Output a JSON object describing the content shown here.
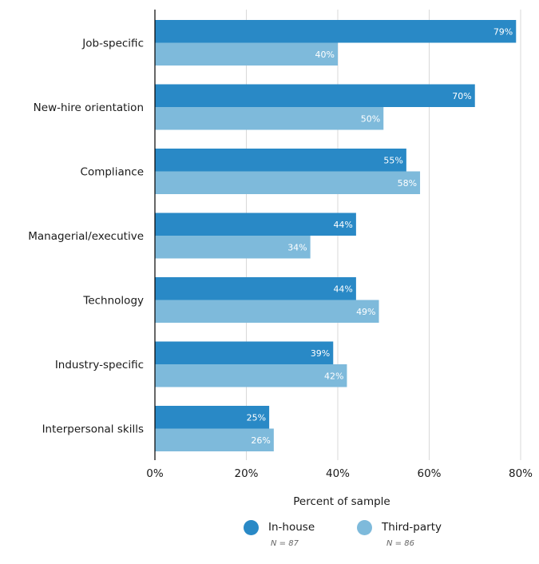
{
  "chart_data": {
    "type": "bar",
    "orientation": "horizontal",
    "title": "",
    "xlabel": "Percent of sample",
    "ylabel": "",
    "xlim": [
      0,
      80
    ],
    "x_ticks": [
      0,
      20,
      40,
      60,
      80
    ],
    "x_tick_labels": [
      "0%",
      "20%",
      "40%",
      "60%",
      "80%"
    ],
    "grid": "vertical",
    "legend_position": "bottom",
    "categories": [
      "Job-specific",
      "New-hire orientation",
      "Compliance",
      "Managerial/executive",
      "Technology",
      "Industry-specific",
      "Interpersonal skills"
    ],
    "series": [
      {
        "name": "In-house",
        "n_label": "N = 87",
        "color": "#2989c6",
        "values": [
          79,
          70,
          55,
          44,
          44,
          39,
          25
        ],
        "labels": [
          "79%",
          "70%",
          "55%",
          "44%",
          "44%",
          "39%",
          "25%"
        ]
      },
      {
        "name": "Third-party",
        "n_label": "N = 86",
        "color": "#7ebadb",
        "values": [
          40,
          50,
          58,
          34,
          49,
          42,
          26
        ],
        "labels": [
          "40%",
          "50%",
          "58%",
          "34%",
          "49%",
          "42%",
          "26%"
        ]
      }
    ]
  }
}
